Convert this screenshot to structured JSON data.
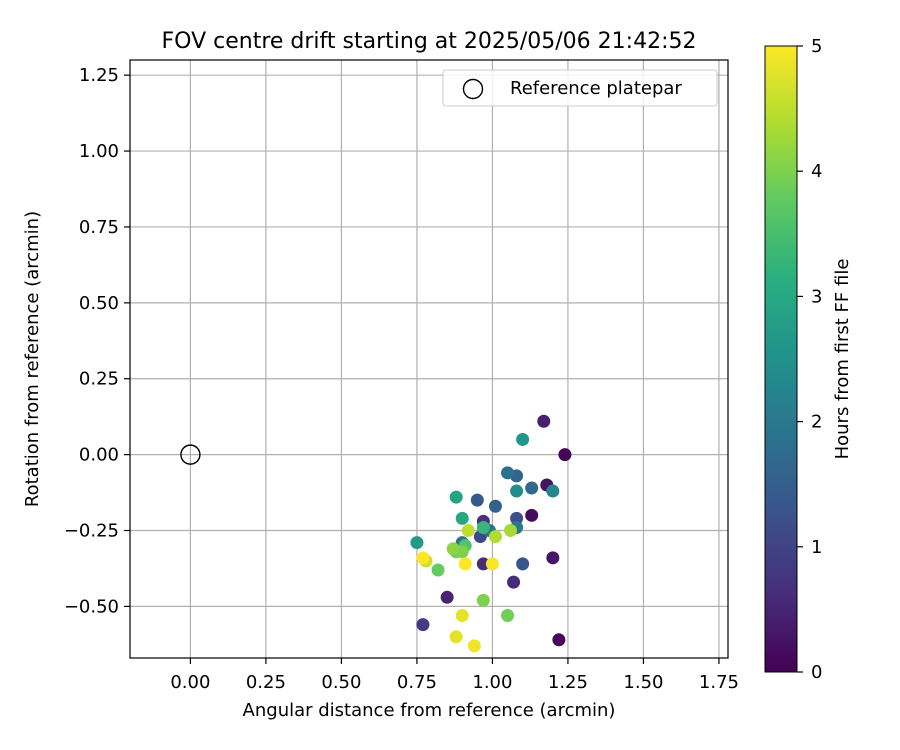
{
  "chart_data": {
    "type": "scatter",
    "title": "FOV centre drift starting at 2025/05/06 21:42:52",
    "xlabel": "Angular distance from reference (arcmin)",
    "ylabel": "Rotation from reference (arcmin)",
    "xlim": [
      -0.2,
      1.78
    ],
    "ylim": [
      -0.67,
      1.3
    ],
    "xticks": [
      "0.00",
      "0.25",
      "0.50",
      "0.75",
      "1.00",
      "1.25",
      "1.50",
      "1.75"
    ],
    "yticks": [
      "−0.50",
      "−0.25",
      "0.00",
      "0.25",
      "0.50",
      "0.75",
      "1.00",
      "1.25"
    ],
    "grid": true,
    "legend": {
      "placement": "top-right",
      "entries": [
        "Reference platepar"
      ]
    },
    "colorbar": {
      "label": "Hours from first FF file",
      "range": [
        0,
        5
      ],
      "ticks": [
        "0",
        "1",
        "2",
        "3",
        "4",
        "5"
      ],
      "colormap": "viridis"
    },
    "reference": {
      "x": 0.0,
      "y": 0.0
    },
    "series": [
      {
        "points": [
          {
            "x": 1.24,
            "y": 0.0,
            "hours": 0.05
          },
          {
            "x": 1.22,
            "y": -0.61,
            "hours": 0.1
          },
          {
            "x": 1.13,
            "y": -0.2,
            "hours": 0.15
          },
          {
            "x": 1.18,
            "y": -0.1,
            "hours": 0.25
          },
          {
            "x": 1.2,
            "y": -0.34,
            "hours": 0.3
          },
          {
            "x": 1.17,
            "y": 0.11,
            "hours": 0.45
          },
          {
            "x": 0.85,
            "y": -0.47,
            "hours": 0.5
          },
          {
            "x": 1.07,
            "y": -0.42,
            "hours": 0.6
          },
          {
            "x": 0.97,
            "y": -0.36,
            "hours": 0.6
          },
          {
            "x": 0.97,
            "y": -0.22,
            "hours": 0.7
          },
          {
            "x": 0.77,
            "y": -0.56,
            "hours": 0.85
          },
          {
            "x": 0.96,
            "y": -0.27,
            "hours": 1.1
          },
          {
            "x": 1.08,
            "y": -0.21,
            "hours": 1.2
          },
          {
            "x": 1.1,
            "y": -0.36,
            "hours": 1.3
          },
          {
            "x": 0.95,
            "y": -0.15,
            "hours": 1.4
          },
          {
            "x": 1.01,
            "y": -0.17,
            "hours": 1.5
          },
          {
            "x": 1.08,
            "y": -0.07,
            "hours": 1.6
          },
          {
            "x": 1.13,
            "y": -0.11,
            "hours": 1.7
          },
          {
            "x": 1.05,
            "y": -0.06,
            "hours": 1.8
          },
          {
            "x": 0.9,
            "y": -0.29,
            "hours": 1.9
          },
          {
            "x": 0.99,
            "y": -0.25,
            "hours": 1.9
          },
          {
            "x": 1.08,
            "y": -0.24,
            "hours": 2.0
          },
          {
            "x": 1.2,
            "y": -0.12,
            "hours": 2.3
          },
          {
            "x": 1.08,
            "y": -0.12,
            "hours": 2.4
          },
          {
            "x": 1.1,
            "y": 0.05,
            "hours": 2.6
          },
          {
            "x": 0.75,
            "y": -0.29,
            "hours": 2.7
          },
          {
            "x": 0.88,
            "y": -0.14,
            "hours": 2.9
          },
          {
            "x": 0.9,
            "y": -0.21,
            "hours": 3.0
          },
          {
            "x": 0.97,
            "y": -0.24,
            "hours": 3.3
          },
          {
            "x": 0.91,
            "y": -0.3,
            "hours": 3.6
          },
          {
            "x": 0.82,
            "y": -0.38,
            "hours": 3.8
          },
          {
            "x": 0.88,
            "y": -0.32,
            "hours": 3.9
          },
          {
            "x": 1.05,
            "y": -0.53,
            "hours": 3.9
          },
          {
            "x": 0.97,
            "y": -0.48,
            "hours": 4.0
          },
          {
            "x": 0.9,
            "y": -0.32,
            "hours": 4.0
          },
          {
            "x": 0.87,
            "y": -0.31,
            "hours": 4.1
          },
          {
            "x": 1.06,
            "y": -0.25,
            "hours": 4.3
          },
          {
            "x": 1.01,
            "y": -0.27,
            "hours": 4.4
          },
          {
            "x": 0.92,
            "y": -0.25,
            "hours": 4.5
          },
          {
            "x": 0.78,
            "y": -0.35,
            "hours": 4.6
          },
          {
            "x": 0.9,
            "y": -0.53,
            "hours": 4.8
          },
          {
            "x": 0.88,
            "y": -0.6,
            "hours": 4.8
          },
          {
            "x": 0.94,
            "y": -0.63,
            "hours": 4.9
          },
          {
            "x": 1.0,
            "y": -0.36,
            "hours": 4.95
          },
          {
            "x": 0.91,
            "y": -0.36,
            "hours": 5.0
          },
          {
            "x": 0.77,
            "y": -0.34,
            "hours": 5.0
          }
        ]
      }
    ]
  }
}
